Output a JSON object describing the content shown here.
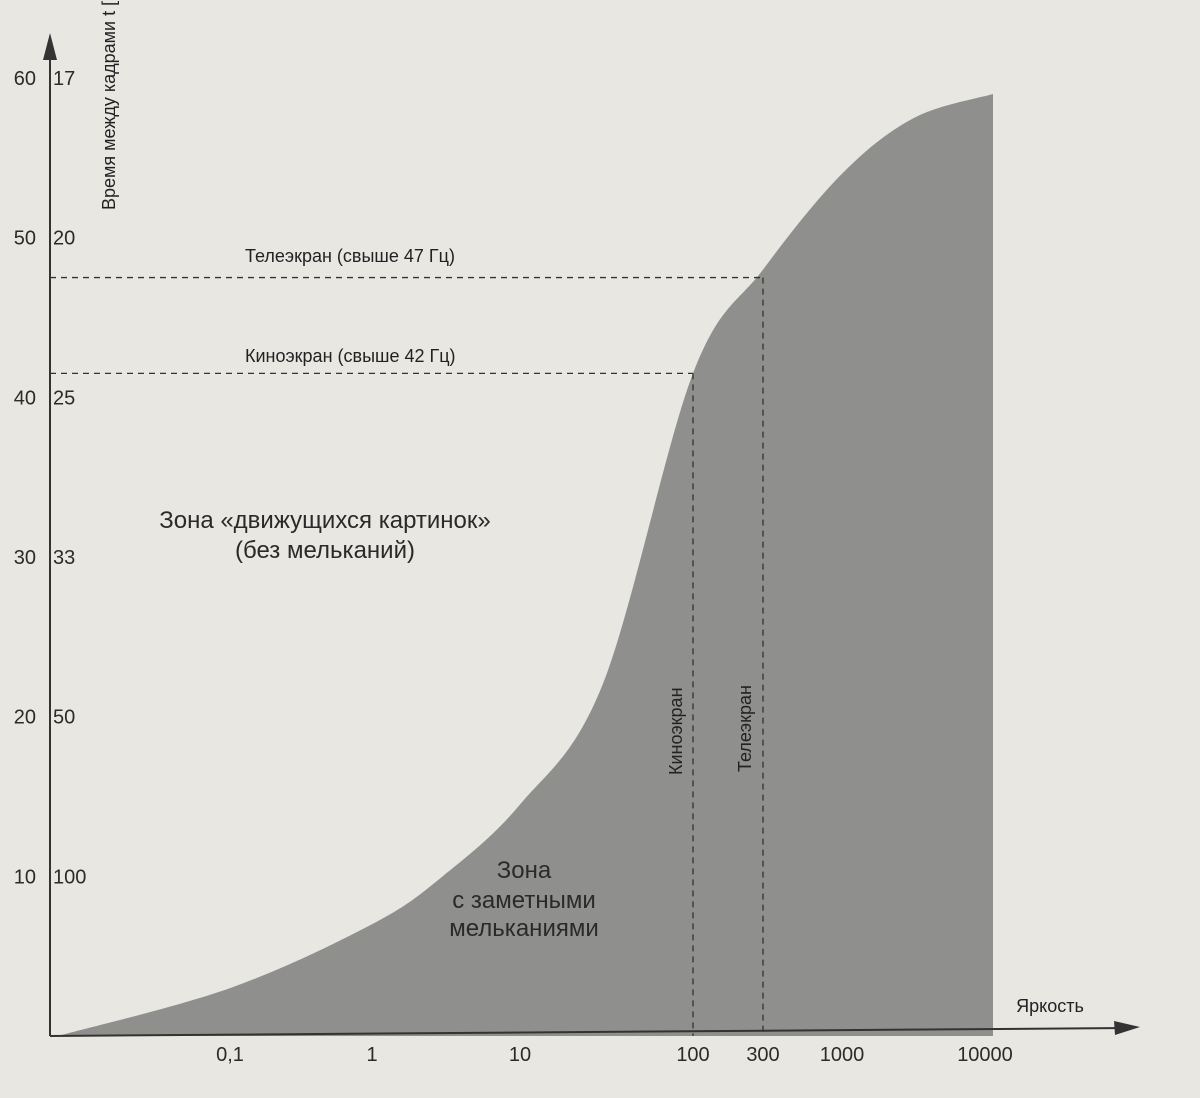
{
  "chart_data": {
    "type": "area",
    "title": "",
    "ylabel": "Время между кадрами t [мс]",
    "xlabel": "Яркость",
    "x_scale": "log",
    "left_axis": {
      "name": "frequency_hz",
      "ticks": [
        10,
        20,
        30,
        40,
        50,
        60
      ],
      "range": [
        0,
        60
      ]
    },
    "right_axis": {
      "name": "time_ms",
      "ticks": [
        "100",
        "50",
        "33",
        "25",
        "20",
        "17"
      ],
      "tick_positions_hz": [
        10,
        20,
        30,
        40,
        50,
        60
      ]
    },
    "x_ticks": [
      {
        "label": "0,1",
        "value": 0.1
      },
      {
        "label": "1",
        "value": 1
      },
      {
        "label": "10",
        "value": 10
      },
      {
        "label": "100",
        "value": 100
      },
      {
        "label": "300",
        "value": 300
      },
      {
        "label": "1000",
        "value": 1000
      },
      {
        "label": "10000",
        "value": 10000
      }
    ],
    "curve": {
      "name": "flicker_fusion_threshold",
      "x": [
        0.01,
        0.1,
        1,
        3,
        10,
        30,
        100,
        300,
        1000,
        3000,
        10000
      ],
      "y": [
        0,
        3,
        7,
        10,
        14.5,
        22,
        41.5,
        48,
        54,
        57.5,
        59
      ]
    },
    "guides": [
      {
        "label": "Телеэкран (свыше 47 Гц)",
        "y": 47.5,
        "x": 300
      },
      {
        "label": "Киноэкран (свыше 42 Гц)",
        "y": 41.5,
        "x": 100
      }
    ],
    "vertical_labels": [
      {
        "label": "Киноэкран",
        "x": 100
      },
      {
        "label": "Телеэкран",
        "x": 300
      }
    ],
    "zones": {
      "upper_line1": "Зона «движущихся картинок»",
      "upper_line2": "(без мельканий)",
      "lower_line1": "Зона",
      "lower_line2": "с заметными",
      "lower_line3": "мельканиями"
    },
    "colors": {
      "background": "#e8e7e2",
      "fill": "#8f8f8d",
      "axis": "#333333"
    }
  }
}
